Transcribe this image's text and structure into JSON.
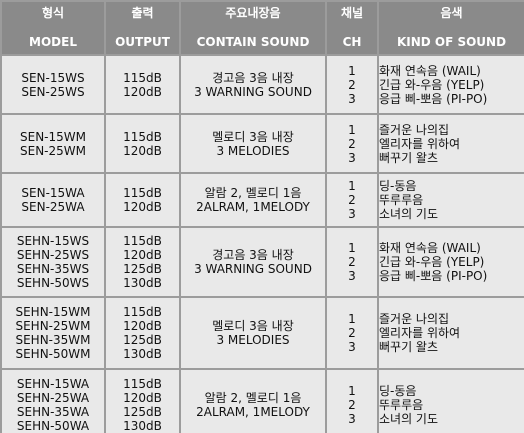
{
  "header": {
    "model": {
      "ko": "형식",
      "en": "MODEL"
    },
    "output": {
      "ko": "출력",
      "en": "OUTPUT"
    },
    "sound": {
      "ko": "주요내장음",
      "en": "CONTAIN SOUND"
    },
    "ch": {
      "ko": "채널",
      "en": "CH"
    },
    "kind": {
      "ko": "음색",
      "en": "KIND OF SOUND"
    }
  },
  "rows": [
    {
      "models": [
        "SEN-15WS",
        "SEN-25WS"
      ],
      "outputs": [
        "115dB",
        "120dB"
      ],
      "sound": [
        "경고음 3음 내장",
        "3 WARNING SOUND"
      ],
      "ch": [
        "1",
        "2",
        "3"
      ],
      "kinds": [
        "화재 연속음 (WAIL)",
        "긴급 와-우음 (YELP)",
        "응급 삐-뽀음 (PI-PO)"
      ]
    },
    {
      "models": [
        "SEN-15WM",
        "SEN-25WM"
      ],
      "outputs": [
        "115dB",
        "120dB"
      ],
      "sound": [
        "멜로디 3음 내장",
        "3 MELODIES"
      ],
      "ch": [
        "1",
        "2",
        "3"
      ],
      "kinds": [
        "즐거운 나의집",
        "엘리자를 위하여",
        "뻐꾸기 왈츠"
      ]
    },
    {
      "models": [
        "SEN-15WA",
        "SEN-25WA"
      ],
      "outputs": [
        "115dB",
        "120dB"
      ],
      "sound": [
        "알람 2, 멜로디 1음",
        "2ALRAM, 1MELODY"
      ],
      "ch": [
        "1",
        "2",
        "3"
      ],
      "kinds": [
        "딩-동음",
        "뚜루루음",
        "소녀의 기도"
      ]
    },
    {
      "models": [
        "SEHN-15WS",
        "SEHN-25WS",
        "SEHN-35WS",
        "SEHN-50WS"
      ],
      "outputs": [
        "115dB",
        "120dB",
        "125dB",
        "130dB"
      ],
      "sound": [
        "경고음 3음 내장",
        "3 WARNING SOUND"
      ],
      "ch": [
        "1",
        "2",
        "3"
      ],
      "kinds": [
        "화재 연속음 (WAIL)",
        "긴급 와-우음 (YELP)",
        "응급 삐-뽀음 (PI-PO)"
      ]
    },
    {
      "models": [
        "SEHN-15WM",
        "SEHN-25WM",
        "SEHN-35WM",
        "SEHN-50WM"
      ],
      "outputs": [
        "115dB",
        "120dB",
        "125dB",
        "130dB"
      ],
      "sound": [
        "멜로디 3음 내장",
        "3 MELODIES"
      ],
      "ch": [
        "1",
        "2",
        "3"
      ],
      "kinds": [
        "즐거운 나의집",
        "엘리자를 위하여",
        "뻐꾸기 왈츠"
      ]
    },
    {
      "models": [
        "SEHN-15WA",
        "SEHN-25WA",
        "SEHN-35WA",
        "SEHN-50WA"
      ],
      "outputs": [
        "115dB",
        "120dB",
        "125dB",
        "130dB"
      ],
      "sound": [
        "알람 2, 멜로디 1음",
        "2ALRAM, 1MELODY"
      ],
      "ch": [
        "1",
        "2",
        "3"
      ],
      "kinds": [
        "딩-동음",
        "뚜루루음",
        "소녀의 기도"
      ]
    }
  ],
  "colors": {
    "border": "#9c9c9c",
    "header_bg": "#8a8a8a",
    "header_text": "#ffffff",
    "cell_bg": "#e9e9e9"
  }
}
